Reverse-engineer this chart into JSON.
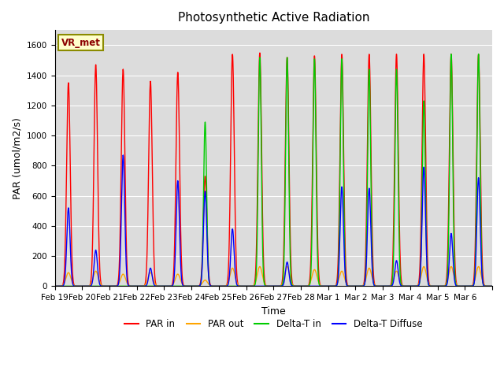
{
  "title": "Photosynthetic Active Radiation",
  "ylabel": "PAR (umol/m2/s)",
  "xlabel": "Time",
  "label_text": "VR_met",
  "ylim": [
    0,
    1700
  ],
  "yticks": [
    0,
    200,
    400,
    600,
    800,
    1000,
    1200,
    1400,
    1600
  ],
  "series_colors": {
    "PAR_in": "#ff0000",
    "PAR_out": "#ffa500",
    "Delta_T_in": "#00cc00",
    "Delta_T_diffuse": "#0000ff"
  },
  "legend_labels": [
    "PAR in",
    "PAR out",
    "Delta-T in",
    "Delta-T Diffuse"
  ],
  "bg_color": "#dcdcdc",
  "title_fontsize": 11,
  "tick_labels": [
    "Feb 19",
    "Feb 20",
    "Feb 21",
    "Feb 22",
    "Feb 23",
    "Feb 24",
    "Feb 25",
    "Feb 26",
    "Feb 27",
    "Feb 28",
    "Mar 1",
    "Mar 2",
    "Mar 3",
    "Mar 4",
    "Mar 5",
    "Mar 6"
  ]
}
